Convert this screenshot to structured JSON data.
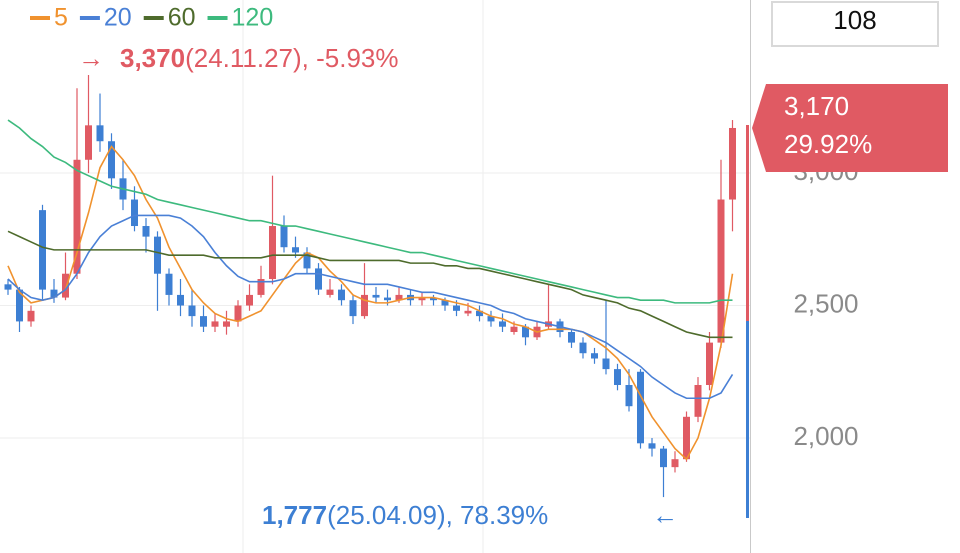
{
  "chart_data": {
    "type": "candlestick",
    "box_value": "108",
    "categories": [
      null,
      null,
      null,
      null,
      null,
      null,
      null,
      null,
      null,
      null,
      null,
      null,
      null,
      null,
      null,
      null,
      null,
      null,
      null,
      null,
      null,
      null,
      null,
      null,
      null,
      null,
      null,
      null,
      null,
      null,
      null,
      null,
      null,
      null,
      null,
      null,
      null,
      null,
      null,
      null,
      null,
      null,
      null,
      null,
      null,
      null,
      null,
      null,
      null,
      null,
      null,
      null,
      null,
      null,
      null,
      null,
      null,
      null,
      null,
      null,
      null,
      null,
      null,
      null
    ],
    "open": [
      2580,
      2560,
      2440,
      2860,
      2560,
      2530,
      2620,
      3050,
      3180,
      3120,
      2980,
      2900,
      2800,
      2760,
      2620,
      2540,
      2500,
      2460,
      2420,
      2420,
      2440,
      2500,
      2540,
      2600,
      2800,
      2720,
      2700,
      2640,
      2540,
      2560,
      2520,
      2460,
      2540,
      2530,
      2520,
      2540,
      2520,
      2530,
      2520,
      2500,
      2470,
      2480,
      2460,
      2440,
      2400,
      2420,
      2380,
      2420,
      2440,
      2400,
      2360,
      2320,
      2300,
      2260,
      2200,
      2250,
      1980,
      1960,
      1890,
      1920,
      2080,
      2200,
      2360,
      2900
    ],
    "high": [
      2600,
      2570,
      2500,
      2880,
      2600,
      2700,
      3320,
      3370,
      3300,
      3150,
      3050,
      2950,
      2830,
      2780,
      2640,
      2600,
      2560,
      2500,
      2470,
      2480,
      2520,
      2580,
      2650,
      2990,
      2840,
      2760,
      2720,
      2660,
      2600,
      2580,
      2540,
      2660,
      2570,
      2560,
      2570,
      2560,
      2550,
      2540,
      2530,
      2520,
      2510,
      2500,
      2480,
      2470,
      2440,
      2430,
      2440,
      2580,
      2450,
      2410,
      2380,
      2340,
      2520,
      2280,
      2260,
      2260,
      2000,
      1970,
      1950,
      2100,
      2230,
      2400,
      3050,
      3200
    ],
    "low": [
      2540,
      2400,
      2420,
      2520,
      2510,
      2520,
      2600,
      3000,
      3080,
      2940,
      2860,
      2780,
      2700,
      2480,
      2500,
      2460,
      2420,
      2400,
      2400,
      2390,
      2420,
      2480,
      2530,
      2580,
      2700,
      2680,
      2620,
      2540,
      2530,
      2500,
      2430,
      2450,
      2510,
      2500,
      2510,
      2500,
      2500,
      2500,
      2480,
      2460,
      2460,
      2440,
      2420,
      2400,
      2390,
      2350,
      2370,
      2410,
      2380,
      2340,
      2300,
      2280,
      2240,
      2180,
      2100,
      1960,
      1930,
      1777,
      1870,
      1910,
      2060,
      2180,
      2340,
      2780
    ],
    "close": [
      2560,
      2440,
      2480,
      2560,
      2530,
      2620,
      3050,
      3180,
      3120,
      2980,
      2900,
      2800,
      2760,
      2620,
      2540,
      2500,
      2460,
      2420,
      2440,
      2440,
      2500,
      2540,
      2600,
      2800,
      2720,
      2700,
      2640,
      2560,
      2560,
      2520,
      2460,
      2540,
      2530,
      2520,
      2540,
      2520,
      2530,
      2520,
      2500,
      2480,
      2480,
      2460,
      2440,
      2420,
      2420,
      2380,
      2420,
      2440,
      2400,
      2360,
      2320,
      2300,
      2260,
      2200,
      2120,
      1980,
      1960,
      1890,
      1920,
      2080,
      2200,
      2360,
      2900,
      3170
    ],
    "up_color": "#e05a63",
    "down_color": "#3d7fd3",
    "lines": [
      {
        "name": "5",
        "color": "#f0922e",
        "values": [
          2650,
          2550,
          2510,
          2520,
          2530,
          2560,
          2700,
          2850,
          3020,
          3100,
          3050,
          2990,
          2900,
          2830,
          2720,
          2640,
          2560,
          2510,
          2470,
          2450,
          2440,
          2460,
          2480,
          2540,
          2600,
          2660,
          2700,
          2680,
          2630,
          2590,
          2540,
          2520,
          2510,
          2510,
          2520,
          2530,
          2530,
          2530,
          2520,
          2510,
          2500,
          2480,
          2460,
          2450,
          2430,
          2420,
          2400,
          2410,
          2410,
          2410,
          2400,
          2370,
          2340,
          2300,
          2240,
          2160,
          2080,
          2020,
          1960,
          1920,
          2000,
          2150,
          2350,
          2620
        ]
      },
      {
        "name": "20",
        "color": "#4a80d6",
        "values": [
          2600,
          2560,
          2530,
          2520,
          2530,
          2560,
          2620,
          2700,
          2760,
          2800,
          2820,
          2840,
          2840,
          2840,
          2840,
          2830,
          2800,
          2760,
          2700,
          2650,
          2610,
          2590,
          2590,
          2590,
          2600,
          2620,
          2620,
          2620,
          2610,
          2600,
          2590,
          2580,
          2580,
          2580,
          2570,
          2560,
          2550,
          2550,
          2540,
          2530,
          2520,
          2510,
          2500,
          2480,
          2470,
          2450,
          2440,
          2430,
          2420,
          2410,
          2400,
          2380,
          2360,
          2330,
          2300,
          2270,
          2230,
          2200,
          2170,
          2150,
          2150,
          2150,
          2170,
          2240
        ]
      },
      {
        "name": "60",
        "color": "#4e6b2c",
        "values": [
          2780,
          2760,
          2740,
          2720,
          2710,
          2710,
          2710,
          2710,
          2710,
          2710,
          2710,
          2710,
          2710,
          2700,
          2690,
          2690,
          2690,
          2690,
          2680,
          2680,
          2680,
          2680,
          2680,
          2690,
          2690,
          2690,
          2690,
          2680,
          2670,
          2670,
          2670,
          2670,
          2670,
          2670,
          2670,
          2660,
          2660,
          2660,
          2650,
          2650,
          2640,
          2640,
          2630,
          2620,
          2610,
          2600,
          2590,
          2580,
          2570,
          2560,
          2540,
          2530,
          2520,
          2510,
          2490,
          2480,
          2460,
          2440,
          2420,
          2400,
          2390,
          2380,
          2380,
          2380
        ]
      },
      {
        "name": "120",
        "color": "#3dba7e",
        "values": [
          3200,
          3170,
          3130,
          3100,
          3060,
          3040,
          3010,
          2990,
          2970,
          2950,
          2940,
          2930,
          2920,
          2900,
          2890,
          2880,
          2870,
          2860,
          2850,
          2840,
          2830,
          2820,
          2820,
          2810,
          2800,
          2800,
          2790,
          2780,
          2770,
          2760,
          2750,
          2740,
          2730,
          2720,
          2710,
          2700,
          2700,
          2690,
          2680,
          2670,
          2660,
          2650,
          2640,
          2630,
          2620,
          2610,
          2600,
          2590,
          2580,
          2570,
          2560,
          2550,
          2540,
          2530,
          2530,
          2520,
          2520,
          2520,
          2510,
          2510,
          2510,
          2510,
          2520,
          2520
        ]
      }
    ],
    "ylim": [
      1566,
      3653
    ],
    "yticks": [
      {
        "value": 2000,
        "label": "2,000"
      },
      {
        "value": 2500,
        "label": "2,500"
      },
      {
        "value": 3000,
        "label": "3,000"
      }
    ],
    "grid": true,
    "high_note": {
      "arrow": "→",
      "value": 3370,
      "label": "3,370",
      "text": "(24.11.27), -5.93%",
      "color": "#e05a63"
    },
    "low_note": {
      "value": 1777,
      "label": "1,777",
      "text": "(25.04.09), 78.39%",
      "arrow": "←",
      "color": "#3d7fd3"
    },
    "last_price": {
      "value": 3170,
      "label": "3,170",
      "change": "29.92%",
      "color": "#e05a63"
    }
  }
}
